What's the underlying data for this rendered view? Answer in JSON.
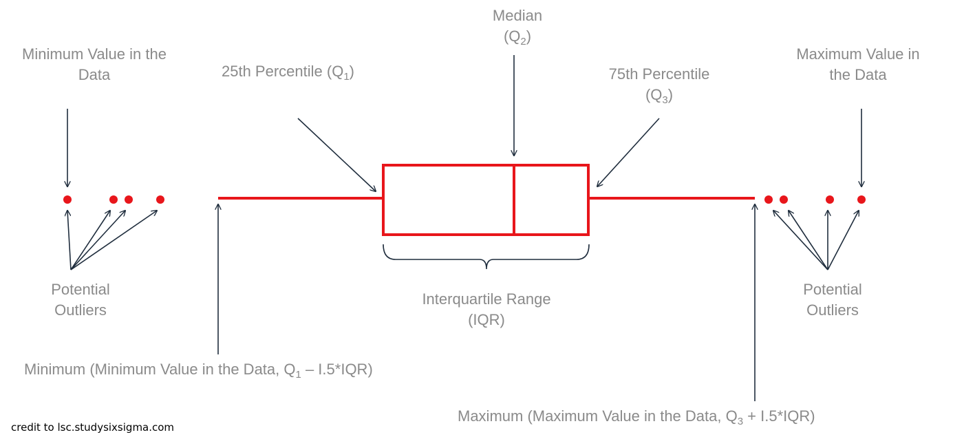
{
  "colors": {
    "box": "#e8161b",
    "outlier_dot": "#e8161b",
    "arrow": "#1f2d3d",
    "label_text": "#8a8a8a",
    "credit_text": "#000000"
  },
  "labels": {
    "min_value_line1": "Minimum Value in the",
    "min_value_line2": "Data",
    "q1": "25th Percentile (Q",
    "q1_sub": "1",
    "q1_close": ")",
    "median_line1": "Median",
    "median_line2_open": "(Q",
    "median_sub": "2",
    "median_line2_close": ")",
    "q3_line1": "75th Percentile",
    "q3_line2_open": "(Q",
    "q3_sub": "3",
    "q3_line2_close": ")",
    "max_value_line1": "Maximum Value in",
    "max_value_line2": "the Data",
    "outliers_left_line1": "Potential",
    "outliers_left_line2": "Outliers",
    "outliers_right_line1": "Potential",
    "outliers_right_line2": "Outliers",
    "iqr_line1": "Interquartile Range",
    "iqr_line2": "(IQR)",
    "minimum_open": "Minimum (Minimum Value in the Data, Q",
    "minimum_sub": "1",
    "minimum_close": " – I.5*IQR)",
    "maximum_open": "Maximum (Maximum Value in the Data, Q",
    "maximum_sub": "3",
    "maximum_close": " + I.5*IQR)",
    "credit": "credit to lsc.studysixsigma.com"
  }
}
